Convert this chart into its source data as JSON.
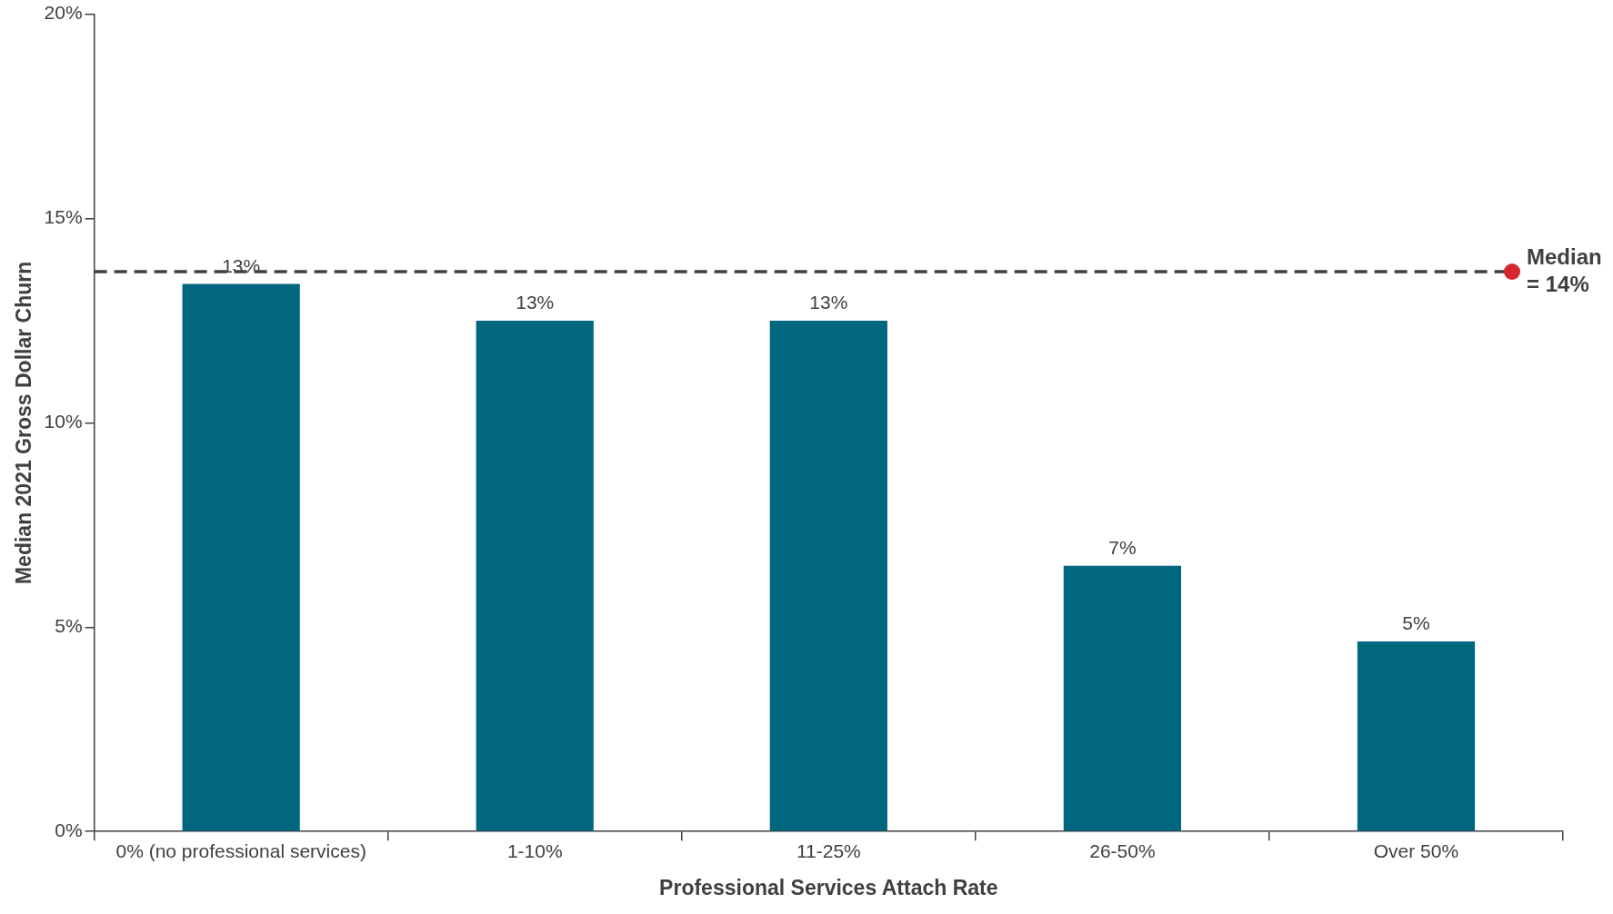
{
  "chart_data": {
    "type": "bar",
    "xlabel": "Professional Services Attach Rate",
    "ylabel": "Median 2021 Gross Dollar Churn",
    "categories": [
      "0% (no professional services)",
      "1-10%",
      "11-25%",
      "26-50%",
      "Over 50%"
    ],
    "values": [
      13.4,
      12.5,
      12.5,
      6.5,
      4.65
    ],
    "color": "#00677f",
    "value_labels": [
      "13%",
      "13%",
      "13%",
      "7%",
      "5%"
    ],
    "ylim": [
      0,
      20
    ],
    "yticks": [
      {
        "value": 0,
        "label": "0%"
      },
      {
        "value": 5,
        "label": "5%"
      },
      {
        "value": 10,
        "label": "10%"
      },
      {
        "value": 15,
        "label": "15%"
      },
      {
        "value": 20,
        "label": "20%"
      }
    ],
    "grid": false,
    "legend": false,
    "ref_lines": [
      {
        "axis": "y",
        "value": 13.7,
        "label": "Median = 14%",
        "color": "#404040",
        "line_style": "dashed"
      }
    ]
  }
}
